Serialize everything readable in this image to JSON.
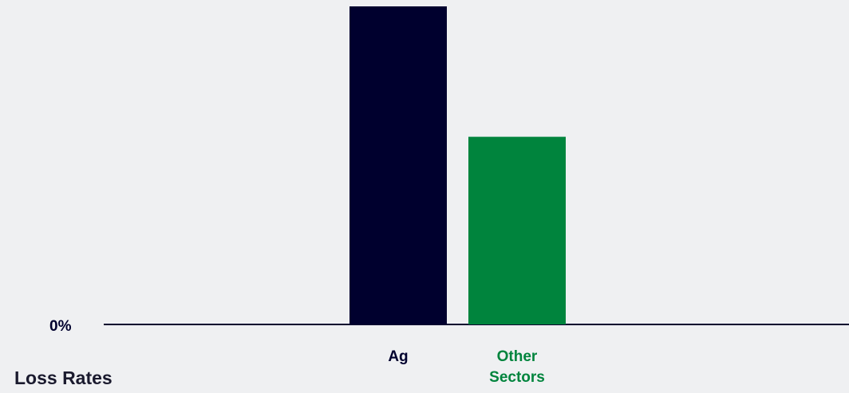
{
  "chart_data": {
    "type": "bar",
    "categories": [
      "Ag",
      "Other\nSectors"
    ],
    "values": [
      1.0,
      0.59
    ],
    "ytick_labels": [
      "0%"
    ],
    "ylabel": "Loss Rates",
    "xlabel": "",
    "title": "",
    "ylim": [
      0,
      1.0
    ],
    "grid": false,
    "legend": "none",
    "colors": {
      "bars": [
        "#00002e",
        "#00843d"
      ],
      "category_labels": [
        "#00002e",
        "#00843d"
      ],
      "axis": "#00002e"
    }
  }
}
